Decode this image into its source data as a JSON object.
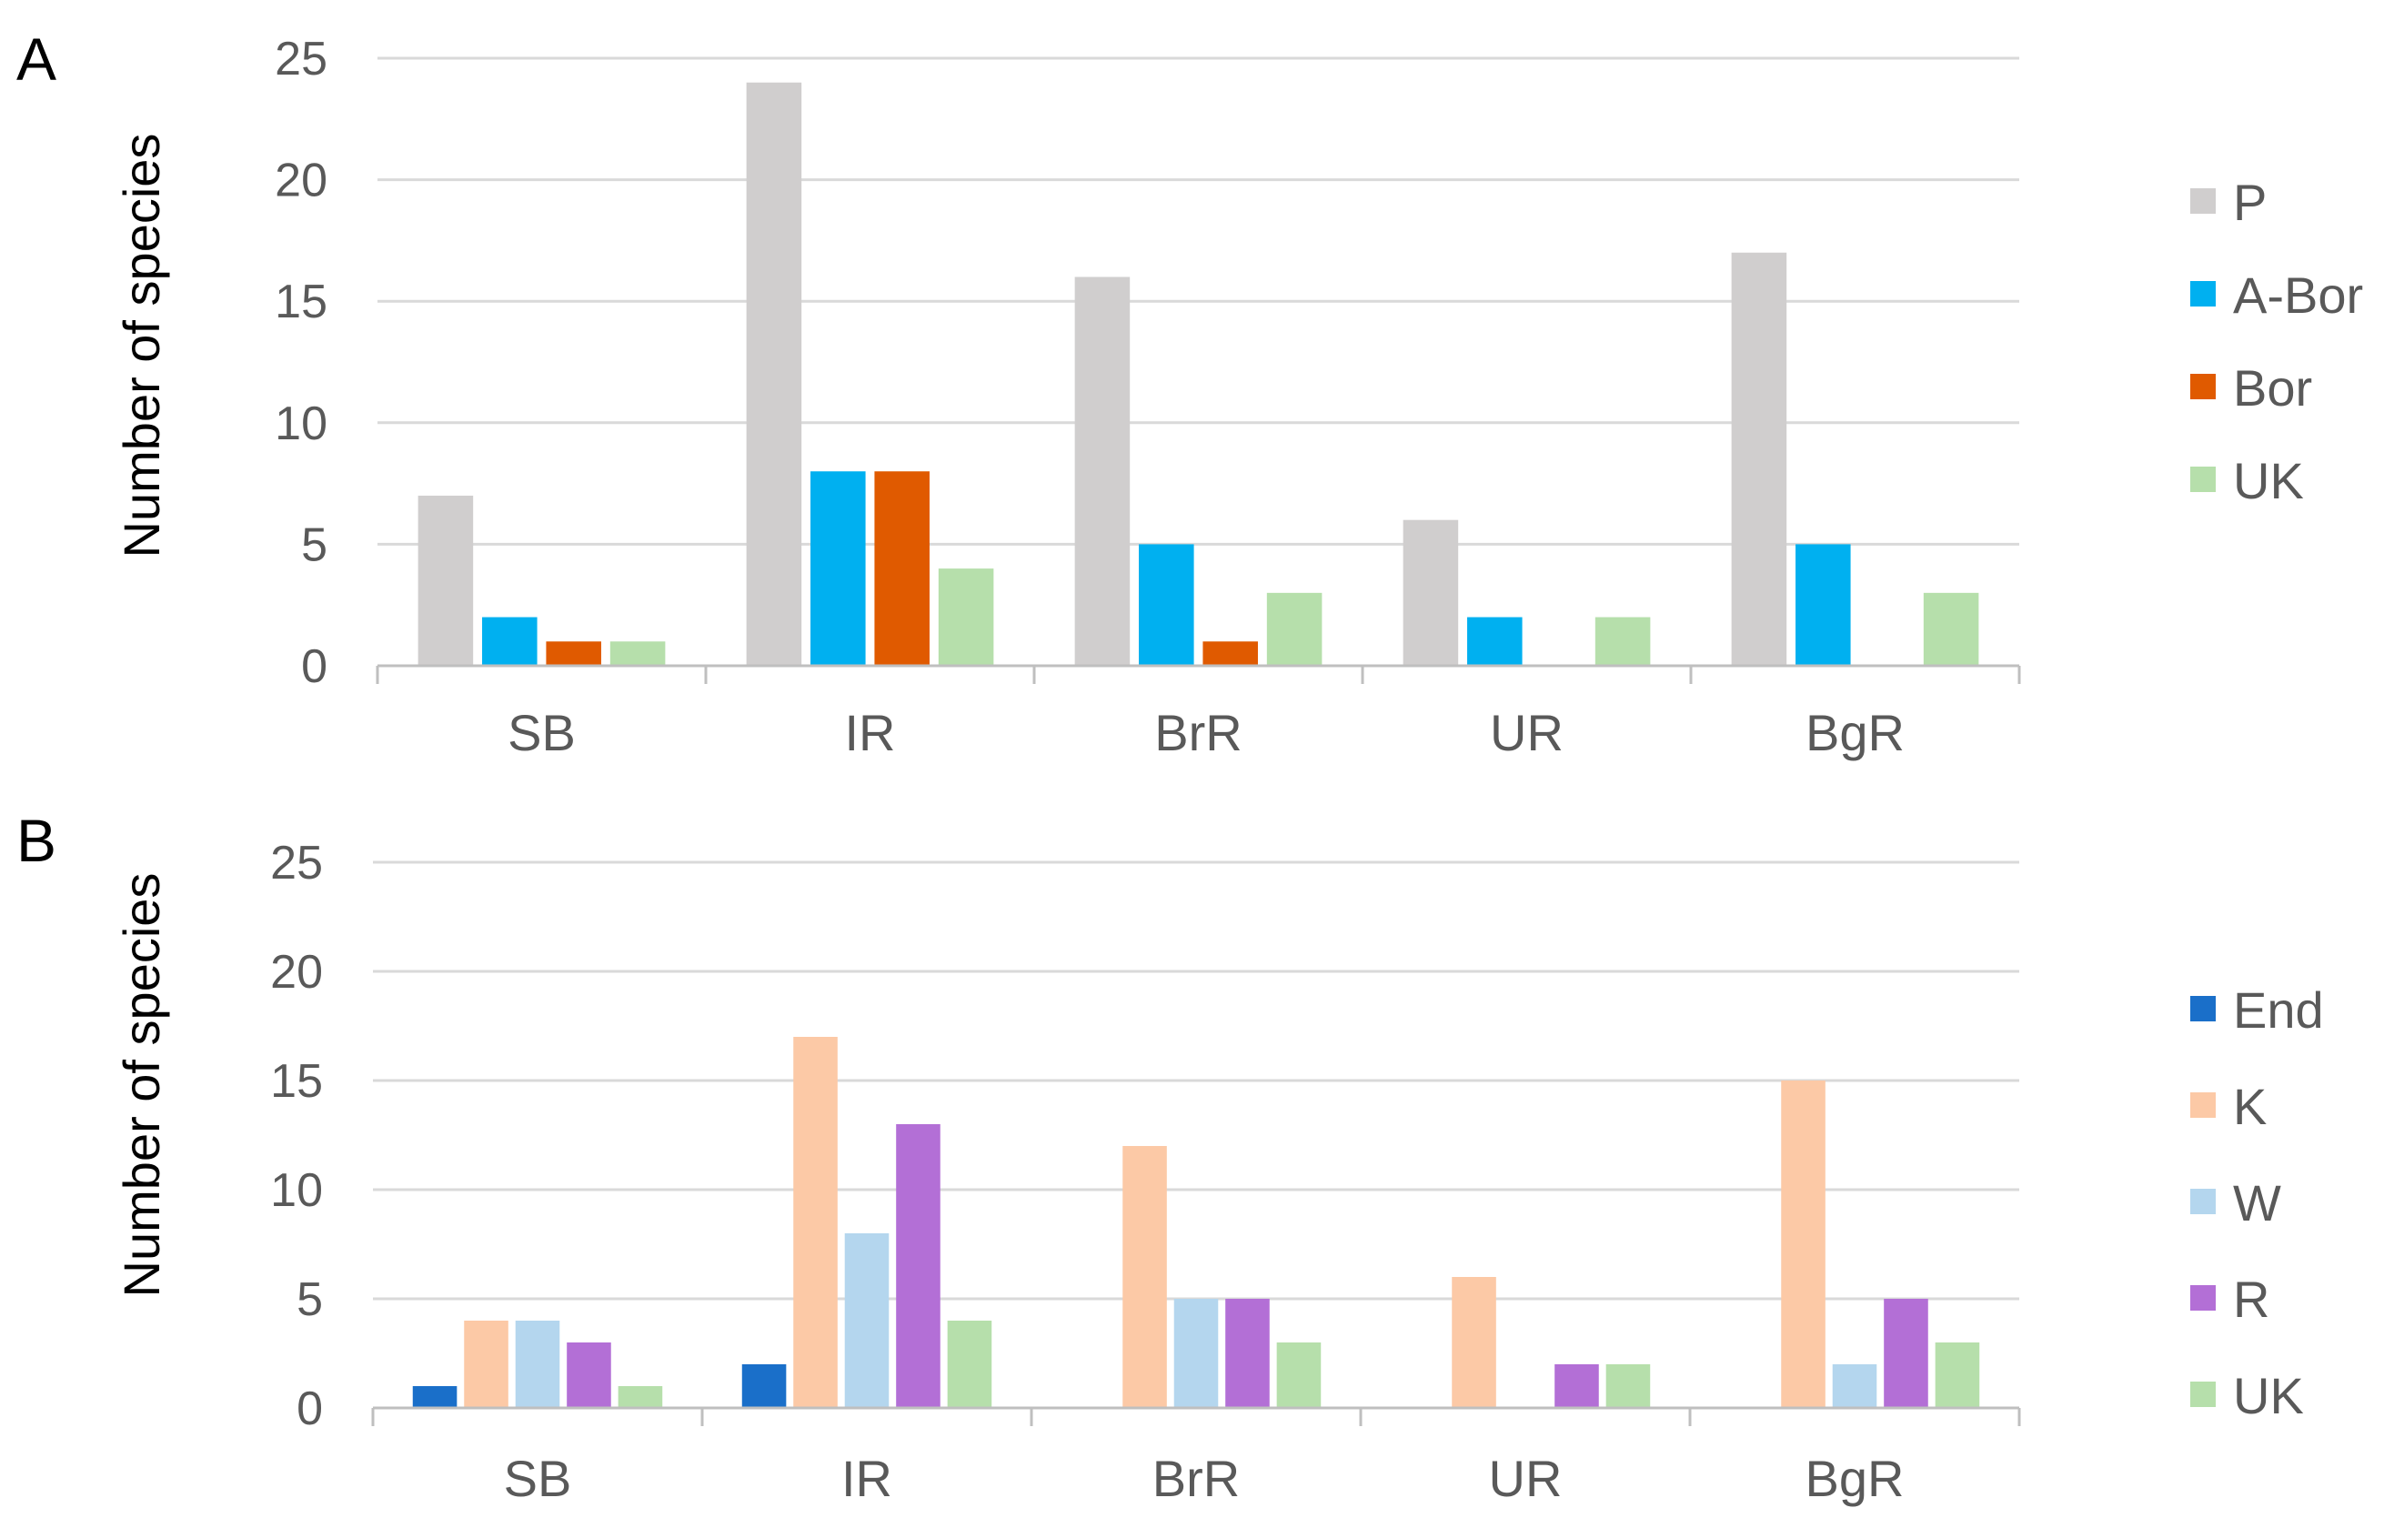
{
  "chart_data": [
    {
      "type": "bar",
      "panel": "A",
      "title": "",
      "xlabel": "",
      "ylabel": "Number of species",
      "ylim": [
        0,
        25
      ],
      "yticks": [
        0,
        5,
        10,
        15,
        20,
        25
      ],
      "grid": true,
      "legend_position": "right",
      "categories": [
        "SB",
        "IR",
        "BrR",
        "UR",
        "BgR"
      ],
      "series": [
        {
          "name": "P",
          "color": "#d0cece",
          "values": [
            7,
            24,
            16,
            6,
            17
          ]
        },
        {
          "name": "A-Bor",
          "color": "#00b0f0",
          "values": [
            2,
            8,
            5,
            2,
            5
          ]
        },
        {
          "name": "Bor",
          "color": "#e05a00",
          "values": [
            1,
            8,
            1,
            0,
            0
          ]
        },
        {
          "name": "UK",
          "color": "#b6dfab",
          "values": [
            1,
            4,
            3,
            2,
            3
          ]
        }
      ]
    },
    {
      "type": "bar",
      "panel": "B",
      "title": "",
      "xlabel": "",
      "ylabel": "Number of species",
      "ylim": [
        0,
        25
      ],
      "yticks": [
        0,
        5,
        10,
        15,
        20,
        25
      ],
      "grid": true,
      "legend_position": "right",
      "categories": [
        "SB",
        "IR",
        "BrR",
        "UR",
        "BgR"
      ],
      "series": [
        {
          "name": "End",
          "color": "#1a6fc9",
          "values": [
            1,
            2,
            0,
            0,
            0
          ]
        },
        {
          "name": "K",
          "color": "#fcc9a6",
          "values": [
            4,
            17,
            12,
            6,
            15
          ]
        },
        {
          "name": "W",
          "color": "#b4d6ee",
          "values": [
            4,
            8,
            5,
            0,
            2
          ]
        },
        {
          "name": "R",
          "color": "#b36fd6",
          "values": [
            3,
            13,
            5,
            2,
            5
          ]
        },
        {
          "name": "UK",
          "color": "#b6dfab",
          "values": [
            1,
            4,
            3,
            2,
            3
          ]
        }
      ]
    }
  ]
}
